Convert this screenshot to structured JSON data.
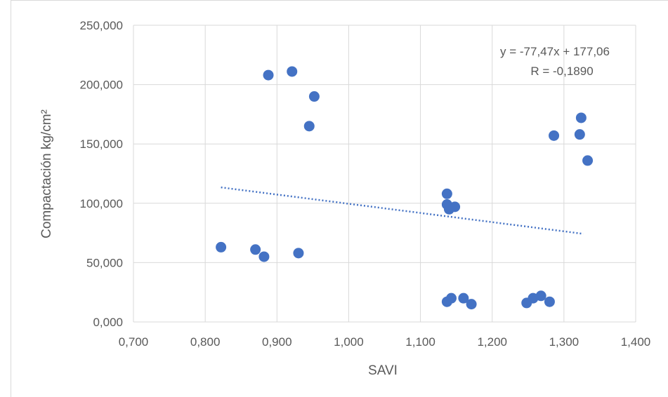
{
  "chart_data": {
    "type": "scatter",
    "title": "",
    "xlabel": "SAVI",
    "ylabel": "Compactación kg/cm²",
    "xlim": [
      0.7,
      1.4
    ],
    "ylim": [
      0,
      250
    ],
    "x_ticks": [
      0.7,
      0.8,
      0.9,
      1.0,
      1.1,
      1.2,
      1.3,
      1.4
    ],
    "x_tick_labels": [
      "0,700",
      "0,800",
      "0,900",
      "1,000",
      "1,100",
      "1,200",
      "1,300",
      "1,400"
    ],
    "y_ticks": [
      0,
      50,
      100,
      150,
      200,
      250
    ],
    "y_tick_labels": [
      "0,000",
      "50,000",
      "100,000",
      "150,000",
      "200,000",
      "250,000"
    ],
    "grid": true,
    "legend": "none",
    "marker_color": "#4472c4",
    "trendline_color": "#4472c4",
    "series": [
      {
        "points": [
          [
            0.822,
            63
          ],
          [
            0.87,
            61
          ],
          [
            0.882,
            55
          ],
          [
            0.888,
            208
          ],
          [
            0.921,
            211
          ],
          [
            0.93,
            58
          ],
          [
            0.945,
            165
          ],
          [
            0.952,
            190
          ],
          [
            1.137,
            17
          ],
          [
            1.137,
            108
          ],
          [
            1.137,
            99
          ],
          [
            1.14,
            95
          ],
          [
            1.143,
            20
          ],
          [
            1.148,
            97
          ],
          [
            1.16,
            20
          ],
          [
            1.171,
            15
          ],
          [
            1.248,
            16
          ],
          [
            1.257,
            20
          ],
          [
            1.268,
            22
          ],
          [
            1.28,
            17
          ],
          [
            1.286,
            157
          ],
          [
            1.322,
            158
          ],
          [
            1.324,
            172
          ],
          [
            1.333,
            136
          ]
        ]
      }
    ],
    "trendline": {
      "x_start": 0.822,
      "x_end": 1.327
    },
    "annotation": {
      "equation": "y = -77,47x + 177,06",
      "r_value": "R = -0,1890"
    }
  }
}
